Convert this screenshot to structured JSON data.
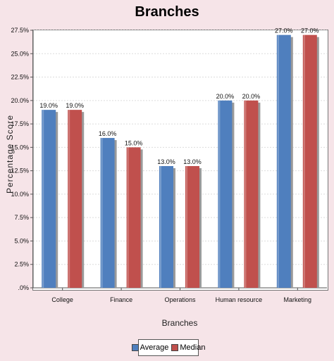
{
  "chart_data": {
    "type": "bar",
    "title": "Branches",
    "xlabel": "Branches",
    "ylabel": "Percentage Score",
    "categories": [
      "College",
      "Finance",
      "Operations",
      "Human resource",
      "Marketing"
    ],
    "series": [
      {
        "name": "Average",
        "values": [
          19.0,
          16.0,
          13.0,
          20.0,
          27.0
        ],
        "labels": [
          "19.0%",
          "16.0%",
          "13.0%",
          "20.0%",
          "27.0%"
        ],
        "color": "#4f7fbe"
      },
      {
        "name": "Median",
        "values": [
          19.0,
          15.0,
          13.0,
          20.0,
          27.0
        ],
        "labels": [
          "19.0%",
          "15.0%",
          "13.0%",
          "20.0%",
          "27.0%"
        ],
        "color": "#c0504d"
      }
    ],
    "yticks": [
      ".0%",
      "2.5%",
      "5.0%",
      "7.5%",
      "10.0%",
      "12.5%",
      "15.0%",
      "17.5%",
      "20.0%",
      "22.5%",
      "25.0%",
      "27.5%"
    ],
    "ylim": [
      0,
      27.5
    ],
    "grid": true,
    "legend": "bottom-center"
  }
}
